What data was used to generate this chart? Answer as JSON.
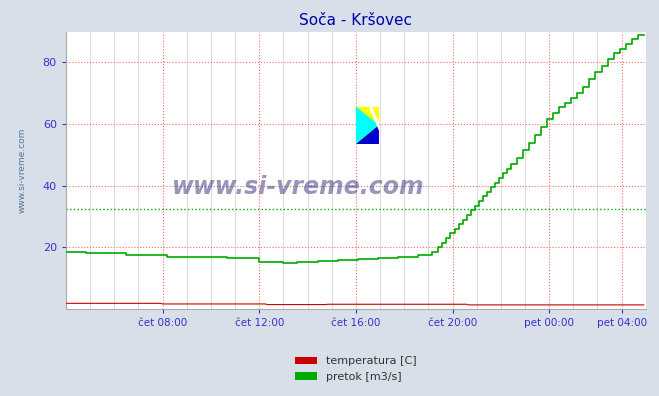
{
  "title": "Soča - Kršovec",
  "title_color": "#0000aa",
  "bg_color": "#d8dfe8",
  "plot_bg_color": "#ffffff",
  "xlim": [
    0,
    288
  ],
  "ylim": [
    0,
    90
  ],
  "yticks": [
    20,
    40,
    60,
    80
  ],
  "xtick_labels": [
    "čet 08:00",
    "čet 12:00",
    "čet 16:00",
    "čet 20:00",
    "pet 00:00",
    "pet 04:00"
  ],
  "xtick_positions": [
    48,
    96,
    144,
    192,
    240,
    276
  ],
  "ylabel_left": "www.si-vreme.com",
  "legend_items": [
    {
      "label": "temperatura [C]",
      "color": "#cc0000"
    },
    {
      "label": "pretok [m3/s]",
      "color": "#00aa00"
    }
  ],
  "temp_color": "#cc0000",
  "flow_color": "#00aa00",
  "watermark_color": "#1a1a6e",
  "avg_line_color": "#00aa00",
  "avg_line_value": 32.5,
  "temp_baseline": 1.5,
  "grid_red": "#ff6666",
  "grid_gray": "#cccccc"
}
